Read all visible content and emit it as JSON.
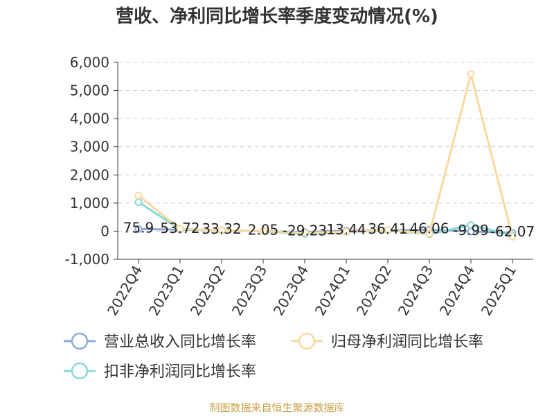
{
  "chart_data": {
    "type": "line",
    "title": "营收、净利同比增长率季度变动情况(%)",
    "categories": [
      "2022Q4",
      "2023Q1",
      "2023Q2",
      "2023Q3",
      "2023Q4",
      "2024Q1",
      "2024Q2",
      "2024Q3",
      "2024Q4",
      "2025Q1"
    ],
    "yticks": [
      "6,000",
      "5,000",
      "4,000",
      "3,000",
      "2,000",
      "1,000",
      "0",
      "-1,000"
    ],
    "ylim": [
      -1000,
      6000
    ],
    "grid": true,
    "legend_position": "bottom",
    "series": [
      {
        "name": "营业总收入同比增长率",
        "color": "#8fa8d8",
        "values": [
          75.9,
          53.72,
          33.32,
          2.05,
          -29.23,
          13.44,
          36.41,
          46.06,
          -9.99,
          -62.07
        ]
      },
      {
        "name": "归母净利润同比增长率",
        "color": "#f8d89c",
        "values": [
          1270,
          80,
          30,
          5,
          -60,
          -20,
          40,
          -90,
          5580,
          -200
        ]
      },
      {
        "name": "扣非净利润同比增长率",
        "color": "#88d8d8",
        "values": [
          1030,
          70,
          20,
          0,
          -100,
          -30,
          25,
          -110,
          220,
          -150
        ]
      }
    ],
    "data_labels": [
      "75.9",
      "53.72",
      "33.32",
      "2.05",
      "-29.23",
      "13.44",
      "36.41",
      "46.06",
      "-9.99",
      "-62.07"
    ],
    "source": "制图数据来自恒生聚源数据库"
  }
}
